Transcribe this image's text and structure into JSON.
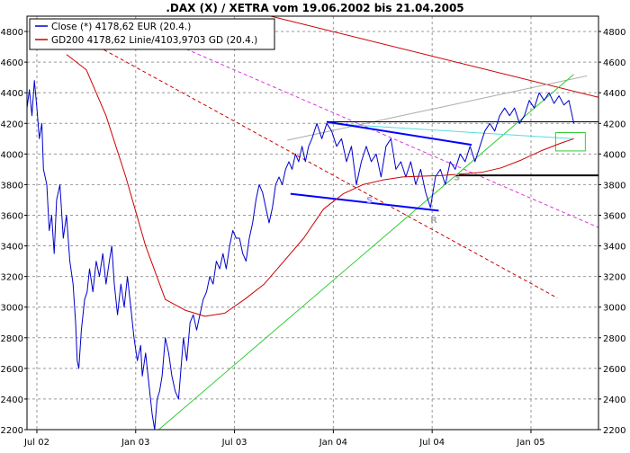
{
  "colors": {
    "close": "#0000cc",
    "gd200": "#cc0000",
    "grid": "#999999",
    "frame": "#000000",
    "trend_blue": "#0000ff",
    "trend_cyan": "#55dddd",
    "trend_green": "#33cc33",
    "trend_red": "#cc0000",
    "trend_magenta": "#dd33dd",
    "trend_gray": "#aaaaaa",
    "support_black": "#000000",
    "box_green": "#33cc33"
  },
  "chart_data": {
    "type": "line",
    "title": ".DAX (X) / XETRA vom 19.06.2002 bis 21.04.2005",
    "xlabel": "",
    "ylabel": "",
    "xlim": [
      0,
      34.7
    ],
    "ylim": [
      2200,
      4900
    ],
    "yticks": [
      2200,
      2400,
      2600,
      2800,
      3000,
      3200,
      3400,
      3600,
      3800,
      4000,
      4200,
      4400,
      4600,
      4800
    ],
    "xticks": [
      {
        "label": "Jul 02",
        "x": 0.6
      },
      {
        "label": "Jan 03",
        "x": 6.6
      },
      {
        "label": "Jul 03",
        "x": 12.6
      },
      {
        "label": "Jan 04",
        "x": 18.6
      },
      {
        "label": "Jul 04",
        "x": 24.6
      },
      {
        "label": "Jan 05",
        "x": 30.6
      }
    ],
    "legend": [
      {
        "label": "Close (*) 4178,62 EUR (20.4.)",
        "color": "#0000cc"
      },
      {
        "label": "GD200 4178,62 Linie/4103,9703 GD (20.4.)",
        "color": "#cc0000"
      }
    ],
    "legend_position": "top-left",
    "grid": true,
    "series": [
      {
        "name": "Close",
        "color": "#0000cc",
        "points": [
          [
            0,
            4300
          ],
          [
            0.15,
            4420
          ],
          [
            0.3,
            4250
          ],
          [
            0.45,
            4480
          ],
          [
            0.6,
            4300
          ],
          [
            0.75,
            4100
          ],
          [
            0.9,
            4200
          ],
          [
            1.0,
            3900
          ],
          [
            1.2,
            3800
          ],
          [
            1.35,
            3500
          ],
          [
            1.5,
            3600
          ],
          [
            1.65,
            3350
          ],
          [
            1.8,
            3700
          ],
          [
            2.0,
            3800
          ],
          [
            2.2,
            3450
          ],
          [
            2.4,
            3600
          ],
          [
            2.6,
            3300
          ],
          [
            2.8,
            3150
          ],
          [
            2.95,
            2900
          ],
          [
            3.05,
            2650
          ],
          [
            3.15,
            2600
          ],
          [
            3.3,
            2850
          ],
          [
            3.5,
            3050
          ],
          [
            3.65,
            3100
          ],
          [
            3.8,
            3250
          ],
          [
            4.0,
            3100
          ],
          [
            4.2,
            3300
          ],
          [
            4.4,
            3200
          ],
          [
            4.6,
            3350
          ],
          [
            4.8,
            3150
          ],
          [
            5.0,
            3300
          ],
          [
            5.15,
            3400
          ],
          [
            5.3,
            3150
          ],
          [
            5.5,
            2950
          ],
          [
            5.7,
            3150
          ],
          [
            5.9,
            3000
          ],
          [
            6.1,
            3200
          ],
          [
            6.3,
            3000
          ],
          [
            6.5,
            2800
          ],
          [
            6.7,
            2650
          ],
          [
            6.9,
            2750
          ],
          [
            7.0,
            2550
          ],
          [
            7.2,
            2700
          ],
          [
            7.4,
            2500
          ],
          [
            7.6,
            2300
          ],
          [
            7.75,
            2200
          ],
          [
            7.9,
            2400
          ],
          [
            8.05,
            2450
          ],
          [
            8.2,
            2550
          ],
          [
            8.4,
            2800
          ],
          [
            8.6,
            2700
          ],
          [
            8.8,
            2550
          ],
          [
            9.0,
            2450
          ],
          [
            9.2,
            2400
          ],
          [
            9.35,
            2600
          ],
          [
            9.5,
            2800
          ],
          [
            9.7,
            2650
          ],
          [
            9.9,
            2900
          ],
          [
            10.1,
            2950
          ],
          [
            10.3,
            2850
          ],
          [
            10.5,
            2950
          ],
          [
            10.7,
            3050
          ],
          [
            10.9,
            3100
          ],
          [
            11.1,
            3200
          ],
          [
            11.3,
            3150
          ],
          [
            11.5,
            3300
          ],
          [
            11.7,
            3250
          ],
          [
            11.9,
            3350
          ],
          [
            12.1,
            3250
          ],
          [
            12.3,
            3400
          ],
          [
            12.5,
            3500
          ],
          [
            12.7,
            3450
          ],
          [
            12.9,
            3450
          ],
          [
            13.1,
            3350
          ],
          [
            13.3,
            3300
          ],
          [
            13.5,
            3450
          ],
          [
            13.7,
            3550
          ],
          [
            13.9,
            3700
          ],
          [
            14.1,
            3800
          ],
          [
            14.3,
            3750
          ],
          [
            14.5,
            3650
          ],
          [
            14.7,
            3550
          ],
          [
            14.9,
            3650
          ],
          [
            15.1,
            3800
          ],
          [
            15.3,
            3850
          ],
          [
            15.5,
            3800
          ],
          [
            15.7,
            3900
          ],
          [
            15.9,
            3950
          ],
          [
            16.1,
            3900
          ],
          [
            16.3,
            4000
          ],
          [
            16.5,
            3950
          ],
          [
            16.7,
            4050
          ],
          [
            16.9,
            3950
          ],
          [
            17.1,
            4050
          ],
          [
            17.3,
            4100
          ],
          [
            17.6,
            4200
          ],
          [
            17.9,
            4100
          ],
          [
            18.2,
            4200
          ],
          [
            18.5,
            4150
          ],
          [
            18.8,
            4050
          ],
          [
            19.1,
            4100
          ],
          [
            19.4,
            3950
          ],
          [
            19.7,
            4050
          ],
          [
            20.0,
            3800
          ],
          [
            20.3,
            3950
          ],
          [
            20.6,
            4050
          ],
          [
            20.9,
            3950
          ],
          [
            21.2,
            4000
          ],
          [
            21.5,
            3850
          ],
          [
            21.8,
            4050
          ],
          [
            22.1,
            4100
          ],
          [
            22.4,
            3900
          ],
          [
            22.7,
            3950
          ],
          [
            23.0,
            3850
          ],
          [
            23.3,
            3950
          ],
          [
            23.6,
            3800
          ],
          [
            23.9,
            3900
          ],
          [
            24.2,
            3750
          ],
          [
            24.5,
            3650
          ],
          [
            24.8,
            3850
          ],
          [
            25.1,
            3900
          ],
          [
            25.4,
            3800
          ],
          [
            25.7,
            3950
          ],
          [
            26.0,
            3900
          ],
          [
            26.3,
            4000
          ],
          [
            26.6,
            3950
          ],
          [
            26.9,
            4050
          ],
          [
            27.2,
            3950
          ],
          [
            27.5,
            4050
          ],
          [
            27.8,
            4150
          ],
          [
            28.1,
            4200
          ],
          [
            28.4,
            4150
          ],
          [
            28.7,
            4250
          ],
          [
            29.0,
            4300
          ],
          [
            29.3,
            4250
          ],
          [
            29.6,
            4300
          ],
          [
            29.9,
            4200
          ],
          [
            30.2,
            4250
          ],
          [
            30.5,
            4350
          ],
          [
            30.8,
            4300
          ],
          [
            31.1,
            4400
          ],
          [
            31.4,
            4350
          ],
          [
            31.7,
            4400
          ],
          [
            32.0,
            4330
          ],
          [
            32.3,
            4380
          ],
          [
            32.6,
            4320
          ],
          [
            32.9,
            4350
          ],
          [
            33.2,
            4200
          ]
        ]
      },
      {
        "name": "GD200",
        "color": "#cc0000",
        "points": [
          [
            2.4,
            4650
          ],
          [
            3.6,
            4550
          ],
          [
            4.8,
            4250
          ],
          [
            6.0,
            3850
          ],
          [
            7.2,
            3400
          ],
          [
            8.4,
            3050
          ],
          [
            9.6,
            2980
          ],
          [
            10.8,
            2940
          ],
          [
            12.0,
            2960
          ],
          [
            13.2,
            3050
          ],
          [
            14.4,
            3150
          ],
          [
            15.6,
            3300
          ],
          [
            16.8,
            3450
          ],
          [
            18.0,
            3640
          ],
          [
            19.2,
            3740
          ],
          [
            20.4,
            3800
          ],
          [
            21.6,
            3830
          ],
          [
            22.8,
            3850
          ],
          [
            24.0,
            3855
          ],
          [
            25.2,
            3860
          ],
          [
            26.4,
            3870
          ],
          [
            27.6,
            3880
          ],
          [
            28.8,
            3910
          ],
          [
            30.0,
            3960
          ],
          [
            31.2,
            4020
          ],
          [
            32.4,
            4070
          ],
          [
            33.2,
            4100
          ]
        ]
      }
    ],
    "trendlines": [
      {
        "color": "#cc0000",
        "dash": false,
        "width": 1,
        "from": [
          14.8,
          4900
        ],
        "to": [
          34.7,
          4370
        ]
      },
      {
        "color": "#cc0000",
        "dash": true,
        "width": 1,
        "from": [
          4.0,
          4720
        ],
        "to": [
          32.2,
          3060
        ]
      },
      {
        "color": "#dd33dd",
        "dash": true,
        "width": 1,
        "from": [
          7.2,
          4800
        ],
        "to": [
          34.7,
          3520
        ]
      },
      {
        "color": "#aaaaaa",
        "dash": false,
        "width": 1,
        "from": [
          15.8,
          4090
        ],
        "to": [
          34.0,
          4510
        ]
      },
      {
        "color": "#33cc33",
        "dash": false,
        "width": 1,
        "from": [
          8.0,
          2200
        ],
        "to": [
          33.2,
          4520
        ]
      },
      {
        "color": "#55dddd",
        "dash": false,
        "width": 1,
        "from": [
          18.2,
          4200
        ],
        "to": [
          33.1,
          4100
        ]
      },
      {
        "color": "#0000ff",
        "dash": false,
        "width": 2,
        "from": [
          18.2,
          4210
        ],
        "to": [
          27.0,
          4060
        ]
      },
      {
        "color": "#0000ff",
        "dash": false,
        "width": 2,
        "from": [
          16.0,
          3740
        ],
        "to": [
          25.0,
          3630
        ]
      },
      {
        "color": "#000000",
        "dash": false,
        "width": 1,
        "from": [
          18.2,
          4210
        ],
        "to": [
          34.7,
          4210
        ]
      },
      {
        "color": "#000000",
        "dash": false,
        "width": 2,
        "from": [
          26.0,
          3860
        ],
        "to": [
          34.7,
          3860
        ]
      }
    ],
    "highlight_box": {
      "color": "#33cc33",
      "x0": 32.1,
      "x1": 33.9,
      "y0": 4020,
      "y1": 4140
    },
    "annotations": [
      {
        "text": "S",
        "x": 20.8,
        "y": 3680,
        "color": "#9999ff"
      },
      {
        "text": "R",
        "x": 24.7,
        "y": 3550,
        "color": "#aaaaaa"
      },
      {
        "text": "S",
        "x": 26.1,
        "y": 3830,
        "color": "#aaaaaa"
      }
    ]
  }
}
